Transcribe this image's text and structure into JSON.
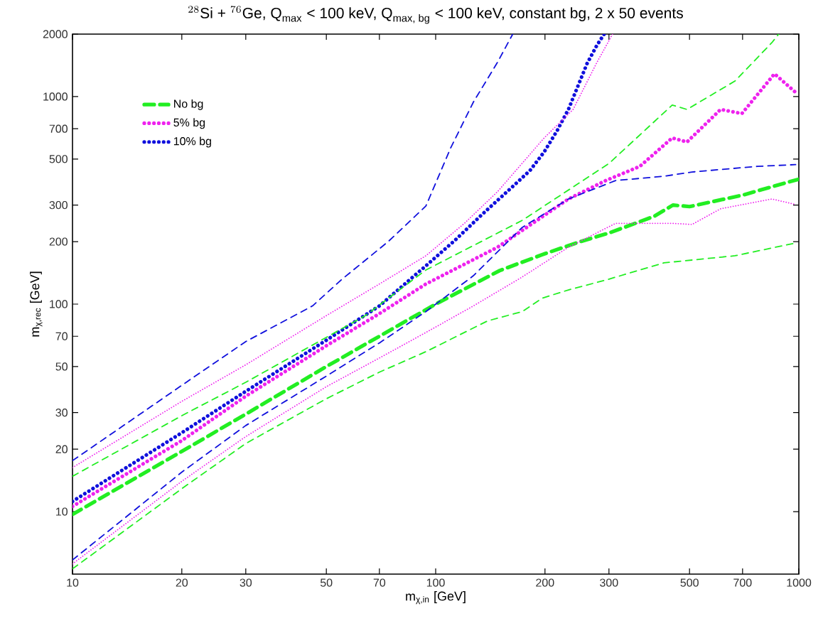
{
  "chart_data": {
    "type": "line",
    "title": "{}^{28}\\text{Si + }{}^{76}\\text{Ge, Q}_{\\text{max}}\\text{ < 100 keV, Q}_{\\text{max, bg}}\\text{ < 100 keV, constant bg, 2 x 50 events}",
    "xlabel": "m$_{χ,in}$ [GeV]",
    "ylabel": "m$_{χ,rec}$ [GeV]",
    "log": "xy",
    "xlim": [
      10,
      1000
    ],
    "ylim": [
      5,
      2000
    ],
    "xticks": [
      10,
      20,
      30,
      50,
      70,
      100,
      200,
      300,
      500,
      700,
      1000
    ],
    "yticks": [
      10,
      20,
      30,
      50,
      70,
      100,
      200,
      300,
      500,
      700,
      1000,
      2000
    ],
    "grid": false,
    "legend": "top left",
    "marker": "none",
    "series": [
      {
        "name": "No bg",
        "color": "#22ee22",
        "line_style": "dashed",
        "x": [
          10,
          20,
          30,
          50,
          70,
          100,
          150,
          200,
          250,
          300,
          400,
          450,
          500,
          700,
          1000
        ],
        "values": [
          9.7,
          19.5,
          29.5,
          50,
          70,
          100,
          145,
          175,
          200,
          220,
          265,
          300,
          295,
          335,
          400
        ]
      },
      {
        "name": "5% bg",
        "color": "#ee22ee",
        "line_style": "dotted",
        "x": [
          10,
          20,
          30,
          50,
          70,
          94,
          148,
          232,
          294,
          365,
          448,
          492,
          609,
          697,
          857,
          980
        ],
        "values": [
          10.6,
          22,
          36,
          63,
          90,
          125,
          188,
          321,
          394,
          461,
          632,
          604,
          867,
          828,
          1287,
          1047
        ]
      },
      {
        "name": "10% bg",
        "color": "#1010dd",
        "line_style": "dotted",
        "x": [
          10,
          20,
          30,
          50,
          70,
          94,
          113,
          135,
          162,
          182,
          199,
          216,
          232,
          247,
          261,
          278,
          291
        ],
        "values": [
          11.2,
          24,
          38,
          67,
          98,
          153,
          203,
          273,
          365,
          441,
          541,
          685,
          867,
          1135,
          1439,
          1767,
          2000
        ]
      },
      {
        "color": "#22ee22",
        "line_style": "dashed",
        "x": [
          10,
          20,
          30,
          64,
          94,
          173,
          300,
          448,
          492,
          667,
          843,
          880
        ],
        "values": [
          14.8,
          29,
          42,
          88,
          146,
          253,
          476,
          910,
          867,
          1188,
          1820,
          2000
        ]
      },
      {
        "color": "#22ee22",
        "line_style": "dashed",
        "x": [
          10,
          20,
          30,
          50,
          70,
          94,
          139,
          173,
          197,
          232,
          296,
          425,
          667,
          980
        ],
        "values": [
          5.3,
          12.9,
          21.3,
          35,
          47,
          59,
          83,
          92,
          107,
          117,
          131,
          158,
          171,
          197
        ]
      },
      {
        "color": "#ee22ee",
        "line_style": "dotted",
        "x": [
          10,
          20,
          30,
          50,
          70,
          94,
          120,
          148,
          199,
          239,
          278,
          307
        ],
        "values": [
          16.3,
          34,
          51,
          88,
          125,
          171,
          245,
          348,
          632,
          867,
          1462,
          2000
        ]
      },
      {
        "color": "#ee22ee",
        "line_style": "dotted",
        "x": [
          10,
          20,
          30,
          50,
          70,
          94,
          127,
          173,
          232,
          313,
          448,
          508,
          609,
          843,
          980
        ],
        "values": [
          5.6,
          14,
          23,
          40,
          55,
          73,
          98,
          135,
          188,
          245,
          245,
          242,
          288,
          321,
          302
        ]
      },
      {
        "color": "#1010dd",
        "line_style": "dashed",
        "x": [
          10,
          20,
          30,
          45.8,
          55,
          74,
          94,
          110,
          127,
          148,
          163
        ],
        "values": [
          17.6,
          40.6,
          66,
          98,
          131,
          200,
          297,
          566,
          940,
          1462,
          2000
        ]
      },
      {
        "color": "#1010dd",
        "line_style": "dashed",
        "x": [
          10,
          20,
          30,
          50,
          70,
          94,
          127,
          173,
          232,
          313,
          425,
          508,
          769,
          980
        ],
        "values": [
          5.85,
          15.5,
          26,
          45,
          65,
          92,
          137,
          234,
          321,
          394,
          413,
          433,
          461,
          470
        ]
      }
    ]
  }
}
